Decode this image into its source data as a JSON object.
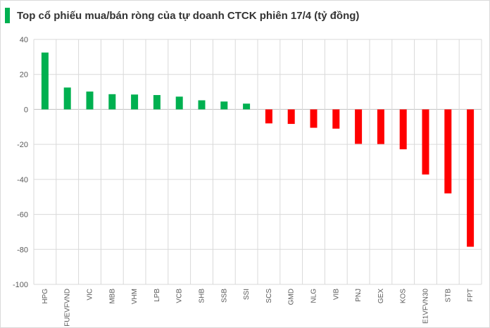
{
  "chart_data": {
    "type": "bar",
    "title": "Top cổ phiếu mua/bán ròng của tự doanh CTCK phiên 17/4 (tỷ đồng)",
    "xlabel": "",
    "ylabel": "",
    "ylim": [
      -100,
      40
    ],
    "yticks": [
      40,
      20,
      0,
      -20,
      -40,
      -60,
      -80,
      -100
    ],
    "grid": true,
    "legend": "none",
    "categories": [
      "HPG",
      "FUEVFVND",
      "VIC",
      "MBB",
      "VHM",
      "LPB",
      "VCB",
      "SHB",
      "SSB",
      "SSI",
      "SCS",
      "GMD",
      "NLG",
      "VIB",
      "PNJ",
      "GEX",
      "KOS",
      "E1VFVN30",
      "STB",
      "FPT"
    ],
    "values": [
      32.5,
      12.5,
      10.2,
      8.7,
      8.5,
      8.2,
      7.3,
      5.2,
      4.5,
      3.3,
      -8.0,
      -8.3,
      -10.5,
      -11.0,
      -19.7,
      -19.8,
      -22.8,
      -37.2,
      -48.0,
      -78.5
    ],
    "colors": {
      "positive": "#00b050",
      "negative": "#ff0000",
      "title_marker": "#00b050"
    }
  }
}
